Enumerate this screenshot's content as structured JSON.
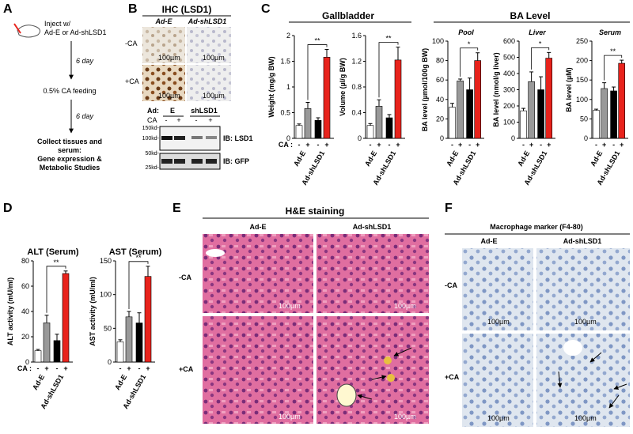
{
  "panel_a": {
    "letter": "A",
    "inject": "Inject w/",
    "vectors": "Ad-E or Ad-shLSD1",
    "day1": "6 day",
    "feeding": "0.5% CA feeding",
    "day2": "6 day",
    "collect": [
      "Collect tissues and",
      "serum:",
      "Gene expression &",
      "Metabolic Studies"
    ]
  },
  "panel_b": {
    "letter": "B",
    "title": "IHC (LSD1)",
    "cols": [
      "Ad-E",
      "Ad-shLSD1"
    ],
    "rows": [
      "-CA",
      "+CA"
    ],
    "scale": "100µm",
    "blot": {
      "ad_label": "Ad:",
      "groups": [
        "E",
        "shLSD1"
      ],
      "ca_label": "CA",
      "signs": [
        "-",
        "+",
        "-",
        "+"
      ],
      "markers": [
        "150kd-",
        "100kd-",
        "50kd-",
        "25kd-"
      ],
      "ib": [
        "IB: LSD1",
        "IB: GFP"
      ]
    }
  },
  "panel_c": {
    "letter": "C",
    "gallbladder": "Gallbladder",
    "ba_level": "BA Level"
  },
  "panel_d": {
    "letter": "D"
  },
  "panel_e": {
    "letter": "E",
    "title": "H&E staining",
    "cols": [
      "Ad-E",
      "Ad-shLSD1"
    ],
    "rows": [
      "-CA",
      "+CA"
    ],
    "scale": "100µm"
  },
  "panel_f": {
    "letter": "F",
    "title": "Macrophage  marker (F4-80)",
    "cols": [
      "Ad-E",
      "Ad-shLSD1"
    ],
    "rows": [
      "-CA",
      "+CA"
    ],
    "scale": "100µm"
  },
  "chart_data": [
    {
      "type": "bar",
      "ylabel": "Weight (mg/g BW)",
      "ylim": [
        0,
        2
      ],
      "yticks": [
        0,
        0.5,
        1,
        1.5,
        2
      ],
      "values": [
        0.25,
        0.58,
        0.35,
        1.58
      ],
      "errors": [
        0.03,
        0.12,
        0.05,
        0.15
      ],
      "colors": [
        "#ffffff",
        "#999999",
        "#000000",
        "#e8231c"
      ],
      "ca_label": "CA :",
      "signs": [
        "-",
        "+",
        "-",
        "+"
      ],
      "groups": [
        "Ad-E",
        "Ad-shLSD1"
      ],
      "significance": "**"
    },
    {
      "type": "bar",
      "ylabel": "Volume (µl/g BW)",
      "ylim": [
        0,
        1.6
      ],
      "yticks": [
        0,
        0.4,
        0.8,
        1.2,
        1.6
      ],
      "values": [
        0.2,
        0.5,
        0.32,
        1.22
      ],
      "errors": [
        0.03,
        0.1,
        0.05,
        0.2
      ],
      "colors": [
        "#ffffff",
        "#999999",
        "#000000",
        "#e8231c"
      ],
      "signs": [
        "-",
        "+",
        "-",
        "+"
      ],
      "groups": [
        "Ad-E",
        "Ad-shLSD1"
      ],
      "significance": "**"
    },
    {
      "type": "bar",
      "title": "Pool",
      "ylabel": "BA level (µmol/100g BW)",
      "ylim": [
        0,
        100
      ],
      "yticks": [
        0,
        20,
        40,
        60,
        80,
        100
      ],
      "values": [
        32,
        59,
        50,
        80
      ],
      "errors": [
        4,
        2,
        12,
        8
      ],
      "colors": [
        "#ffffff",
        "#999999",
        "#000000",
        "#e8231c"
      ],
      "signs": [
        "-",
        "+",
        "-",
        "+"
      ],
      "groups": [
        "Ad-E",
        "Ad-shLSD1"
      ],
      "significance": "*"
    },
    {
      "type": "bar",
      "title": "Liver",
      "ylabel": "BA level (nmol/g liver)",
      "ylim": [
        0,
        600
      ],
      "yticks": [
        0,
        100,
        200,
        300,
        400,
        500,
        600
      ],
      "values": [
        170,
        350,
        300,
        495
      ],
      "errors": [
        15,
        60,
        80,
        35
      ],
      "colors": [
        "#ffffff",
        "#999999",
        "#000000",
        "#e8231c"
      ],
      "signs": [
        "-",
        "+",
        "-",
        "+"
      ],
      "groups": [
        "Ad-E",
        "Ad-shLSD1"
      ],
      "significance": "*"
    },
    {
      "type": "bar",
      "title": "Serum",
      "ylabel": "BA level (µM)",
      "ylim": [
        0,
        250
      ],
      "yticks": [
        0,
        50,
        100,
        150,
        200,
        250
      ],
      "values": [
        72,
        128,
        122,
        193
      ],
      "errors": [
        3,
        15,
        10,
        8
      ],
      "colors": [
        "#ffffff",
        "#999999",
        "#000000",
        "#e8231c"
      ],
      "signs": [
        "-",
        "+",
        "-",
        "+"
      ],
      "groups": [
        "Ad-E",
        "Ad-shLSD1"
      ],
      "significance": "**"
    },
    {
      "type": "bar",
      "title": "ALT (Serum)",
      "ylabel": "ALT activity (mU/ml)",
      "ylim": [
        0,
        80
      ],
      "yticks": [
        0,
        20,
        40,
        60,
        80
      ],
      "values": [
        9,
        31,
        17,
        70
      ],
      "errors": [
        1,
        6,
        5,
        2
      ],
      "colors": [
        "#ffffff",
        "#999999",
        "#000000",
        "#e8231c"
      ],
      "ca_label": "CA :",
      "signs": [
        "-",
        "+",
        "-",
        "+"
      ],
      "groups": [
        "Ad-E",
        "Ad-shLSD1"
      ],
      "significance": "**"
    },
    {
      "type": "bar",
      "title": "AST (Serum)",
      "ylabel": "AST activity (mU/ml)",
      "ylim": [
        0,
        150
      ],
      "yticks": [
        0,
        50,
        100,
        150
      ],
      "values": [
        30,
        67,
        58,
        127
      ],
      "errors": [
        3,
        8,
        15,
        15
      ],
      "colors": [
        "#ffffff",
        "#999999",
        "#000000",
        "#e8231c"
      ],
      "signs": [
        "-",
        "+",
        "-",
        "+"
      ],
      "groups": [
        "Ad-E",
        "Ad-shLSD1"
      ],
      "significance": "**"
    }
  ]
}
